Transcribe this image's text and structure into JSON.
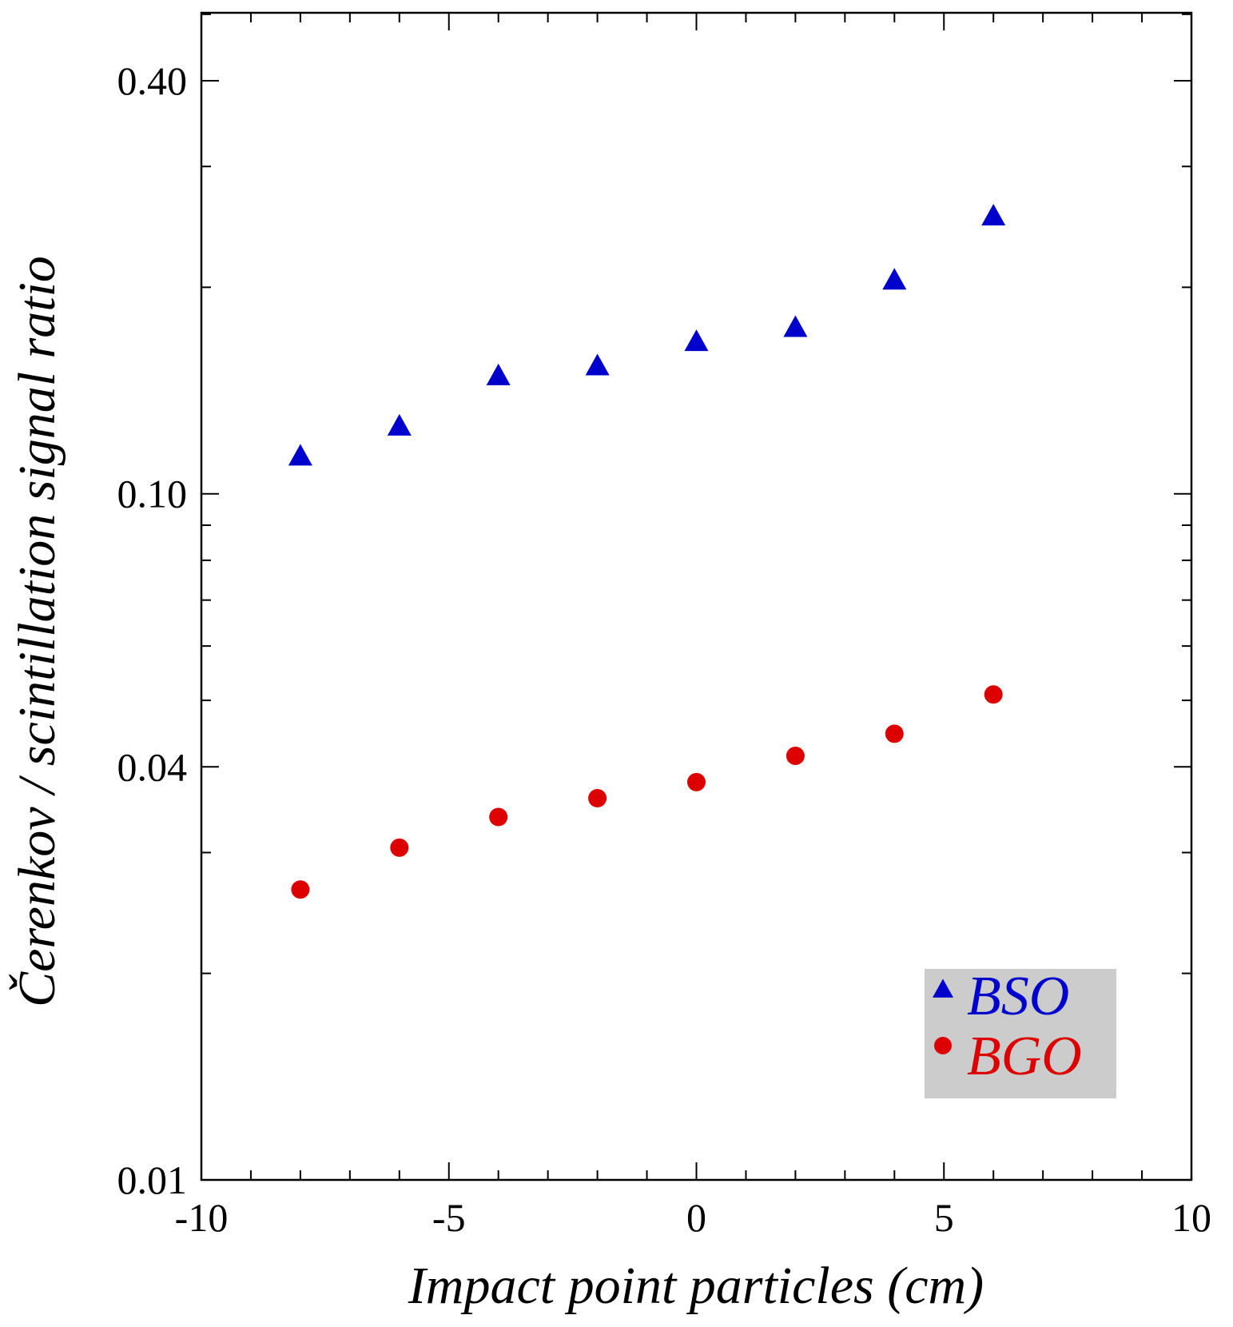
{
  "chart_data": {
    "type": "scatter",
    "title": "",
    "xlabel": "Impact point particles (cm)",
    "ylabel": "Čerenkov / scintillation signal ratio",
    "xlim": [
      -10,
      10
    ],
    "ylim": [
      0.01,
      0.5
    ],
    "yscale": "log",
    "x_ticks": [
      -10,
      -5,
      0,
      5,
      10
    ],
    "x_tick_labels": [
      "-10",
      "-5",
      "0",
      "5",
      "10"
    ],
    "y_ticks": [
      0.01,
      0.04,
      0.1,
      0.4
    ],
    "y_tick_labels": [
      "0.01",
      "0.04",
      "0.10",
      "0.40"
    ],
    "grid": false,
    "legend_position": "bottom-right",
    "series": [
      {
        "name": "BSO",
        "marker": "triangle",
        "color": "#0000cc",
        "x": [
          -8,
          -6,
          -4,
          -2,
          0,
          2,
          4,
          6
        ],
        "y": [
          0.113,
          0.125,
          0.148,
          0.153,
          0.166,
          0.174,
          0.204,
          0.253
        ]
      },
      {
        "name": "BGO",
        "marker": "circle",
        "color": "#dd0000",
        "x": [
          -8,
          -6,
          -4,
          -2,
          0,
          2,
          4,
          6
        ],
        "y": [
          0.0265,
          0.0305,
          0.0338,
          0.036,
          0.038,
          0.0415,
          0.0447,
          0.051
        ]
      }
    ]
  }
}
